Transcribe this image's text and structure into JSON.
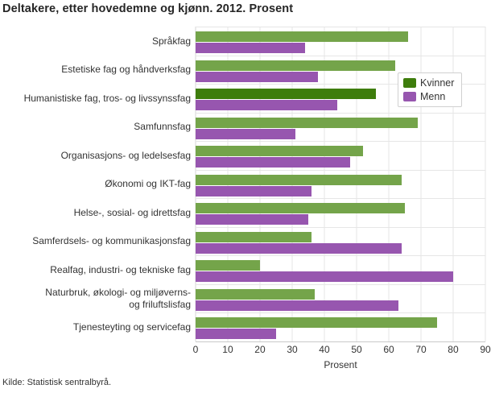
{
  "title": "Deltakere, etter hovedemne og kjønn. 2012. Prosent",
  "source": "Kilde: Statistisk sentralbyrå.",
  "legend": {
    "position": "inside-top-right",
    "items": [
      {
        "label": "Kvinner",
        "color": "#3e7d0c"
      },
      {
        "label": "Menn",
        "color": "#9756af"
      }
    ]
  },
  "colors": {
    "kvinner": "#74a44a",
    "kvinner_highlighted": "#3e7d0c",
    "menn": "#9756af",
    "grid": "#e6e6e6",
    "axis": "#c9c9c9",
    "text": "#333333"
  },
  "chart_data": {
    "type": "bar",
    "orientation": "horizontal",
    "title": "Deltakere, etter hovedemne og kjønn. 2012. Prosent",
    "xlabel": "Prosent",
    "xlim": [
      0,
      90
    ],
    "xticks": [
      0,
      10,
      20,
      30,
      40,
      50,
      60,
      70,
      80,
      90
    ],
    "grid": true,
    "categories": [
      "Språkfag",
      "Estetiske fag og håndverksfag",
      "Humanistiske fag, tros- og livssynssfag",
      "Samfunnsfag",
      "Organisasjons- og ledelsesfag",
      "Økonomi og IKT-fag",
      "Helse-, sosial- og idrettsfag",
      "Samferdsels- og kommunikasjonsfag",
      "Realfag, industri- og tekniske fag",
      "Naturbruk, økologi- og miljøverns-\nog friluftslisfag",
      "Tjenesteyting og servicefag"
    ],
    "series": [
      {
        "name": "Kvinner",
        "values": [
          66,
          62,
          56,
          69,
          52,
          64,
          65,
          36,
          20,
          37,
          75
        ]
      },
      {
        "name": "Menn",
        "values": [
          34,
          38,
          44,
          31,
          48,
          36,
          35,
          64,
          80,
          63,
          25
        ]
      }
    ],
    "highlighted_bar": {
      "series": "Kvinner",
      "category": "Humanistiske fag, tros- og livssynssfag"
    }
  }
}
